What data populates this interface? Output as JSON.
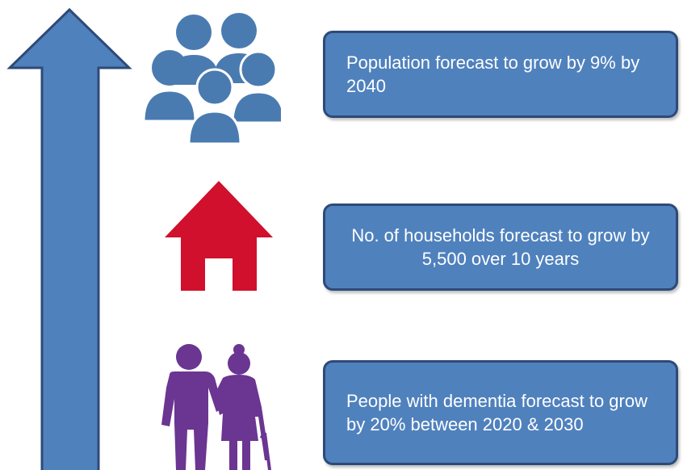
{
  "colors": {
    "arrow_fill": "#4f81bd",
    "arrow_stroke": "#2e4a78",
    "box_fill": "#4f81bd",
    "box_border": "#2e4a78",
    "people_icon": "#4a7bb0",
    "house_icon": "#d0102c",
    "elderly_icon": "#6b3592"
  },
  "icons": {
    "population": "people-group-icon",
    "households": "house-icon",
    "dementia": "elderly-couple-icon"
  },
  "items": [
    {
      "text": "Population forecast to grow by 9% by 2040"
    },
    {
      "text": "No. of households forecast to grow by 5,500 over 10 years"
    },
    {
      "text": "People with dementia forecast to grow by 20% between 2020 & 2030"
    }
  ]
}
